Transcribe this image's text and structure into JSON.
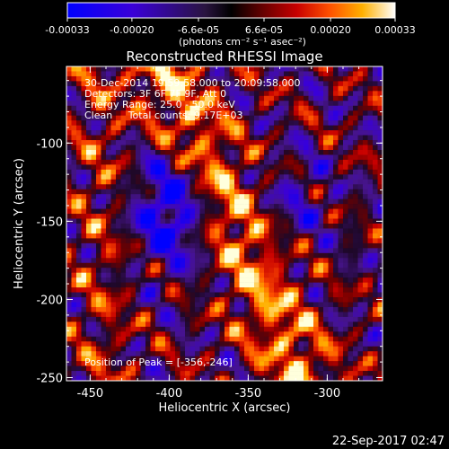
{
  "chart_data": {
    "type": "heatmap",
    "title": "Reconstructed RHESSI Image",
    "xlabel": "Heliocentric X (arcsec)",
    "ylabel": "Heliocentric Y (arcsec)",
    "xlim": [
      -465,
      -265
    ],
    "ylim": [
      -252,
      -51
    ],
    "x_ticks": [
      -450,
      -400,
      -350,
      -300
    ],
    "y_ticks": [
      -100,
      -150,
      -200,
      -250
    ],
    "colorbar": {
      "range": [
        -0.00033,
        0.00033
      ],
      "ticks": [
        {
          "value": -0.00033,
          "label": "-0.00033"
        },
        {
          "value": -0.0002,
          "label": "-0.00020"
        },
        {
          "value": -6.6e-05,
          "label": "-6.6e-05"
        },
        {
          "value": 6.6e-05,
          "label": "6.6e-05"
        },
        {
          "value": 0.0002,
          "label": "0.00020"
        },
        {
          "value": 0.00033,
          "label": "0.00033"
        }
      ],
      "unit_label": "(photons cm⁻² s⁻¹ asec⁻²)"
    },
    "annotations": {
      "time_range": "30-Dec-2014 19:59:58.000 to 20:09:58.000",
      "detectors": "Detectors: 3F 6F 7F 9F, Att 0",
      "energy": "Energy Range: 25.0 - 50.0 keV",
      "method": "Clean     Total counts: 9.17E+03",
      "peak": "Position of Peak = [-356,-246]"
    },
    "footer": "22-Sep-2017 02:47"
  }
}
